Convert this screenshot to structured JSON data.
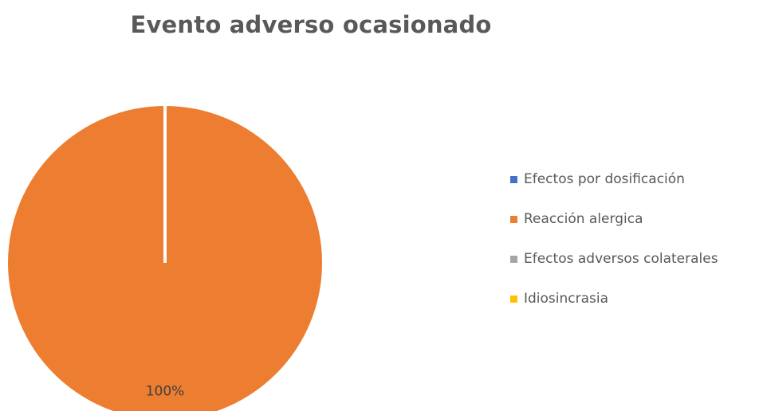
{
  "chart_data": {
    "type": "pie",
    "title": "Evento adverso ocasionado",
    "categories": [
      "Efectos por dosificación",
      "Reacción alergica",
      "Efectos adversos colaterales",
      "Idiosincrasia"
    ],
    "values": [
      0,
      100,
      0,
      0
    ],
    "data_labels": [
      "",
      "100%",
      "",
      ""
    ],
    "colors": [
      "#4472C4",
      "#ED7D31",
      "#A5A5A5",
      "#FFC000"
    ],
    "legend_position": "right"
  }
}
